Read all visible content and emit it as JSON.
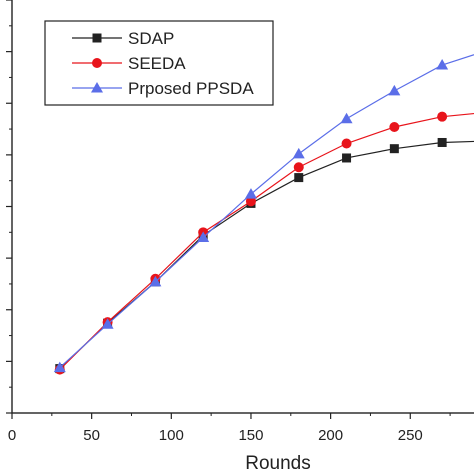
{
  "chart_data": {
    "type": "line",
    "title": "",
    "xlabel": "Rounds",
    "ylabel": "",
    "xlim": [
      0,
      290
    ],
    "ylim": [
      0,
      400
    ],
    "xticks": [
      0,
      50,
      100,
      150,
      200,
      250
    ],
    "x_tick_labels": [
      "0",
      "50",
      "100",
      "150",
      "200",
      "250"
    ],
    "yticks": [
      0,
      50,
      100,
      150,
      200,
      250,
      300,
      350,
      400
    ],
    "grid": false,
    "legend_position": "top-left",
    "x": [
      30,
      60,
      90,
      120,
      150,
      180,
      210,
      240,
      270,
      290
    ],
    "series": [
      {
        "name": "SDAP",
        "marker": "square",
        "color": "#222222",
        "values": [
          43,
          87,
          127,
          172,
          203,
          228,
          247,
          256,
          262,
          263
        ]
      },
      {
        "name": "SEEDA",
        "marker": "circle",
        "color": "#e8141b",
        "values": [
          42,
          88,
          130,
          175,
          205,
          238,
          261,
          277,
          287,
          290
        ]
      },
      {
        "name": "Prposed PPSDA",
        "marker": "triangle",
        "color": "#5b6ee8",
        "values": [
          44,
          86,
          127,
          170,
          212,
          251,
          285,
          312,
          337,
          347
        ]
      }
    ]
  }
}
